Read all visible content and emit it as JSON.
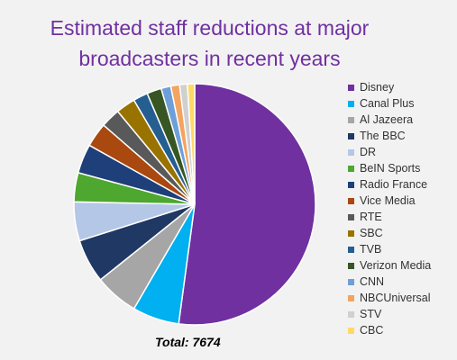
{
  "chart_data": {
    "type": "pie",
    "title_lines": [
      "Estimated staff reductions at major",
      "broadcasters in recent years"
    ],
    "legend_position": "right",
    "total_label": "Total: 7674",
    "slices": [
      {
        "label": "Disney",
        "value": 4000,
        "color": "#7030a0"
      },
      {
        "label": "Canal Plus",
        "value": 480,
        "color": "#00b0f0"
      },
      {
        "label": "Al Jazeera",
        "value": 450,
        "color": "#a6a6a6"
      },
      {
        "label": "The BBC",
        "value": 450,
        "color": "#203864"
      },
      {
        "label": "DR",
        "value": 400,
        "color": "#b4c7e7"
      },
      {
        "label": "BeIN Sports",
        "value": 300,
        "color": "#4ea72e"
      },
      {
        "label": "Radio France",
        "value": 300,
        "color": "#1f3f7a"
      },
      {
        "label": "Vice Media",
        "value": 250,
        "color": "#a9480f"
      },
      {
        "label": "RTE",
        "value": 200,
        "color": "#595959"
      },
      {
        "label": "SBC",
        "value": 200,
        "color": "#997300"
      },
      {
        "label": "TVB",
        "value": 150,
        "color": "#255e91"
      },
      {
        "label": "Verizon Media",
        "value": 150,
        "color": "#375623"
      },
      {
        "label": "CNN",
        "value": 100,
        "color": "#6f9fd8"
      },
      {
        "label": "NBCUniversal",
        "value": 90,
        "color": "#f4a460"
      },
      {
        "label": "STV",
        "value": 80,
        "color": "#d0d0d0"
      },
      {
        "label": "CBC",
        "value": 74,
        "color": "#ffd966"
      }
    ]
  }
}
